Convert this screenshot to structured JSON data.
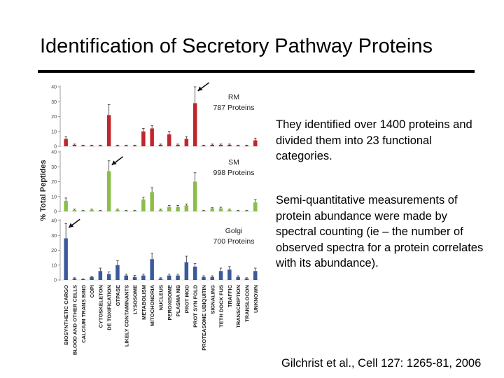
{
  "slide": {
    "title": "Identification of Secretory Pathway Proteins",
    "paragraph1": "They identified over 1400 proteins and divided them into 23 functional categories.",
    "paragraph2": "Semi-quantitative measurements of protein abundance were made by spectral counting (ie – the number of observed spectra for a protein correlates with its abundance).",
    "citation": "Gilchrist et al., Cell 127: 1265-81, 2006"
  },
  "chart_data": {
    "type": "bar",
    "ylabel": "% Total Peptides",
    "ylim": [
      0,
      40
    ],
    "yticks": [
      0,
      10,
      20,
      30,
      40
    ],
    "categories": [
      "BIOSYNTHETIC CARGO",
      "BLOOD AND OTHER CELLS",
      "CALCIUM TRANS BIND",
      "COPI",
      "CYTOSKELETON",
      "DE TOXIFICATION",
      "GTPASE",
      "LIKELY CONTAMINANTS",
      "LYSOSOME",
      "METABOLISM",
      "MITOCHONDRIA",
      "NUCLEUS",
      "PEROXISOME",
      "PLASMA MB",
      "PROT MOD",
      "PROT SYN FOLD",
      "PROTEASOME UBIQUITIN",
      "SIGNALING",
      "TETH DOCK FUS",
      "TRAFFIC",
      "TRANSCRIPTION",
      "TRANSLOCON",
      "UNKNOWN"
    ],
    "colors": {
      "RM": "#c0262c",
      "SM": "#8cbd4a",
      "Golgi": "#3a5a9c"
    },
    "series": [
      {
        "name": "RM",
        "annotation": "787 Proteins",
        "values": [
          5,
          1,
          0.5,
          0.5,
          0.5,
          21,
          0.5,
          0.5,
          0.5,
          10,
          12,
          1,
          8,
          1,
          5,
          29,
          0.5,
          1,
          1,
          1,
          0.5,
          0.5,
          4
        ],
        "errors": [
          1.5,
          0.5,
          0.3,
          0.3,
          0.3,
          7,
          0.3,
          0.3,
          0.3,
          2,
          2,
          0.5,
          2,
          0.5,
          1.5,
          11,
          0.3,
          0.5,
          0.5,
          0.5,
          0.3,
          0.3,
          1.5
        ]
      },
      {
        "name": "SM",
        "annotation": "998 Proteins",
        "values": [
          7,
          1,
          0.5,
          1,
          0.5,
          27,
          1,
          0.5,
          0.5,
          8,
          13,
          1,
          3,
          3,
          4,
          20,
          0.5,
          2,
          2,
          1,
          0.5,
          0.5,
          6
        ],
        "errors": [
          2,
          0.5,
          0.3,
          0.5,
          0.3,
          7,
          0.5,
          0.3,
          0.3,
          1.5,
          3,
          0.5,
          1,
          1,
          1,
          6,
          0.3,
          0.5,
          0.8,
          0.5,
          0.3,
          0.3,
          2
        ]
      },
      {
        "name": "Golgi",
        "annotation": "700 Proteins",
        "values": [
          28,
          1,
          0.5,
          2,
          6,
          4,
          10,
          3,
          2,
          3,
          14,
          1,
          3,
          3,
          12,
          9,
          2,
          2,
          6,
          7,
          2,
          1,
          6
        ],
        "errors": [
          10,
          0.5,
          0.3,
          0.5,
          2,
          1.5,
          3,
          1,
          1,
          1,
          4,
          0.5,
          1,
          1,
          4,
          2,
          0.8,
          0.8,
          2,
          2,
          0.8,
          0.5,
          2
        ]
      }
    ]
  }
}
